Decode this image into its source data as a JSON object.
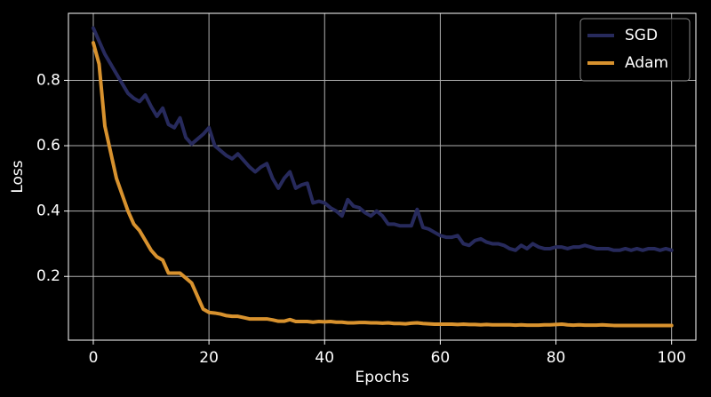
{
  "chart_data": {
    "type": "line",
    "xlabel": "Epochs",
    "ylabel": "Loss",
    "x": [
      0,
      1,
      2,
      3,
      4,
      5,
      6,
      7,
      8,
      9,
      10,
      11,
      12,
      13,
      14,
      15,
      16,
      17,
      18,
      19,
      20,
      21,
      22,
      23,
      24,
      25,
      26,
      27,
      28,
      29,
      30,
      31,
      32,
      33,
      34,
      35,
      36,
      37,
      38,
      39,
      40,
      41,
      42,
      43,
      44,
      45,
      46,
      47,
      48,
      49,
      50,
      51,
      52,
      53,
      54,
      55,
      56,
      57,
      58,
      59,
      60,
      61,
      62,
      63,
      64,
      65,
      66,
      67,
      68,
      69,
      70,
      71,
      72,
      73,
      74,
      75,
      76,
      77,
      78,
      79,
      80,
      81,
      82,
      83,
      84,
      85,
      86,
      87,
      88,
      89,
      90,
      91,
      92,
      93,
      94,
      95,
      96,
      97,
      98,
      99,
      100
    ],
    "series": [
      {
        "name": "SGD",
        "color": "#272a5c",
        "values": [
          0.96,
          0.92,
          0.88,
          0.85,
          0.82,
          0.79,
          0.76,
          0.745,
          0.735,
          0.755,
          0.72,
          0.69,
          0.715,
          0.665,
          0.655,
          0.685,
          0.625,
          0.605,
          0.62,
          0.635,
          0.655,
          0.6,
          0.585,
          0.57,
          0.56,
          0.575,
          0.555,
          0.535,
          0.52,
          0.535,
          0.545,
          0.5,
          0.47,
          0.5,
          0.52,
          0.47,
          0.48,
          0.485,
          0.425,
          0.43,
          0.425,
          0.41,
          0.4,
          0.385,
          0.435,
          0.415,
          0.41,
          0.395,
          0.385,
          0.4,
          0.385,
          0.36,
          0.36,
          0.355,
          0.355,
          0.355,
          0.405,
          0.35,
          0.345,
          0.335,
          0.325,
          0.32,
          0.32,
          0.325,
          0.3,
          0.295,
          0.31,
          0.315,
          0.305,
          0.3,
          0.3,
          0.295,
          0.285,
          0.28,
          0.295,
          0.285,
          0.3,
          0.29,
          0.285,
          0.285,
          0.29,
          0.29,
          0.285,
          0.29,
          0.29,
          0.295,
          0.29,
          0.285,
          0.285,
          0.285,
          0.28,
          0.28,
          0.285,
          0.28,
          0.285,
          0.28,
          0.285,
          0.285,
          0.28,
          0.285,
          0.28
        ]
      },
      {
        "name": "Adam",
        "color": "#d8922e",
        "values": [
          0.915,
          0.85,
          0.66,
          0.58,
          0.5,
          0.45,
          0.4,
          0.36,
          0.34,
          0.31,
          0.28,
          0.26,
          0.25,
          0.21,
          0.21,
          0.21,
          0.195,
          0.18,
          0.14,
          0.1,
          0.09,
          0.088,
          0.085,
          0.08,
          0.078,
          0.078,
          0.074,
          0.07,
          0.07,
          0.07,
          0.07,
          0.067,
          0.063,
          0.063,
          0.068,
          0.062,
          0.062,
          0.062,
          0.06,
          0.062,
          0.061,
          0.062,
          0.06,
          0.06,
          0.058,
          0.058,
          0.059,
          0.059,
          0.058,
          0.058,
          0.057,
          0.058,
          0.056,
          0.056,
          0.055,
          0.057,
          0.058,
          0.056,
          0.055,
          0.054,
          0.054,
          0.054,
          0.054,
          0.053,
          0.054,
          0.053,
          0.053,
          0.052,
          0.053,
          0.052,
          0.052,
          0.052,
          0.052,
          0.051,
          0.052,
          0.051,
          0.051,
          0.051,
          0.052,
          0.052,
          0.053,
          0.054,
          0.052,
          0.051,
          0.052,
          0.051,
          0.051,
          0.051,
          0.052,
          0.051,
          0.05,
          0.05,
          0.05,
          0.05,
          0.05,
          0.05,
          0.05,
          0.05,
          0.05,
          0.05,
          0.05
        ]
      }
    ],
    "xlim": [
      -4.3,
      104.2
    ],
    "ylim": [
      0.005,
      1.005
    ],
    "xticks": [
      0,
      20,
      40,
      60,
      80,
      100
    ],
    "yticks": [
      0.2,
      0.4,
      0.6,
      0.8
    ],
    "grid": true,
    "legend": "upper right"
  }
}
